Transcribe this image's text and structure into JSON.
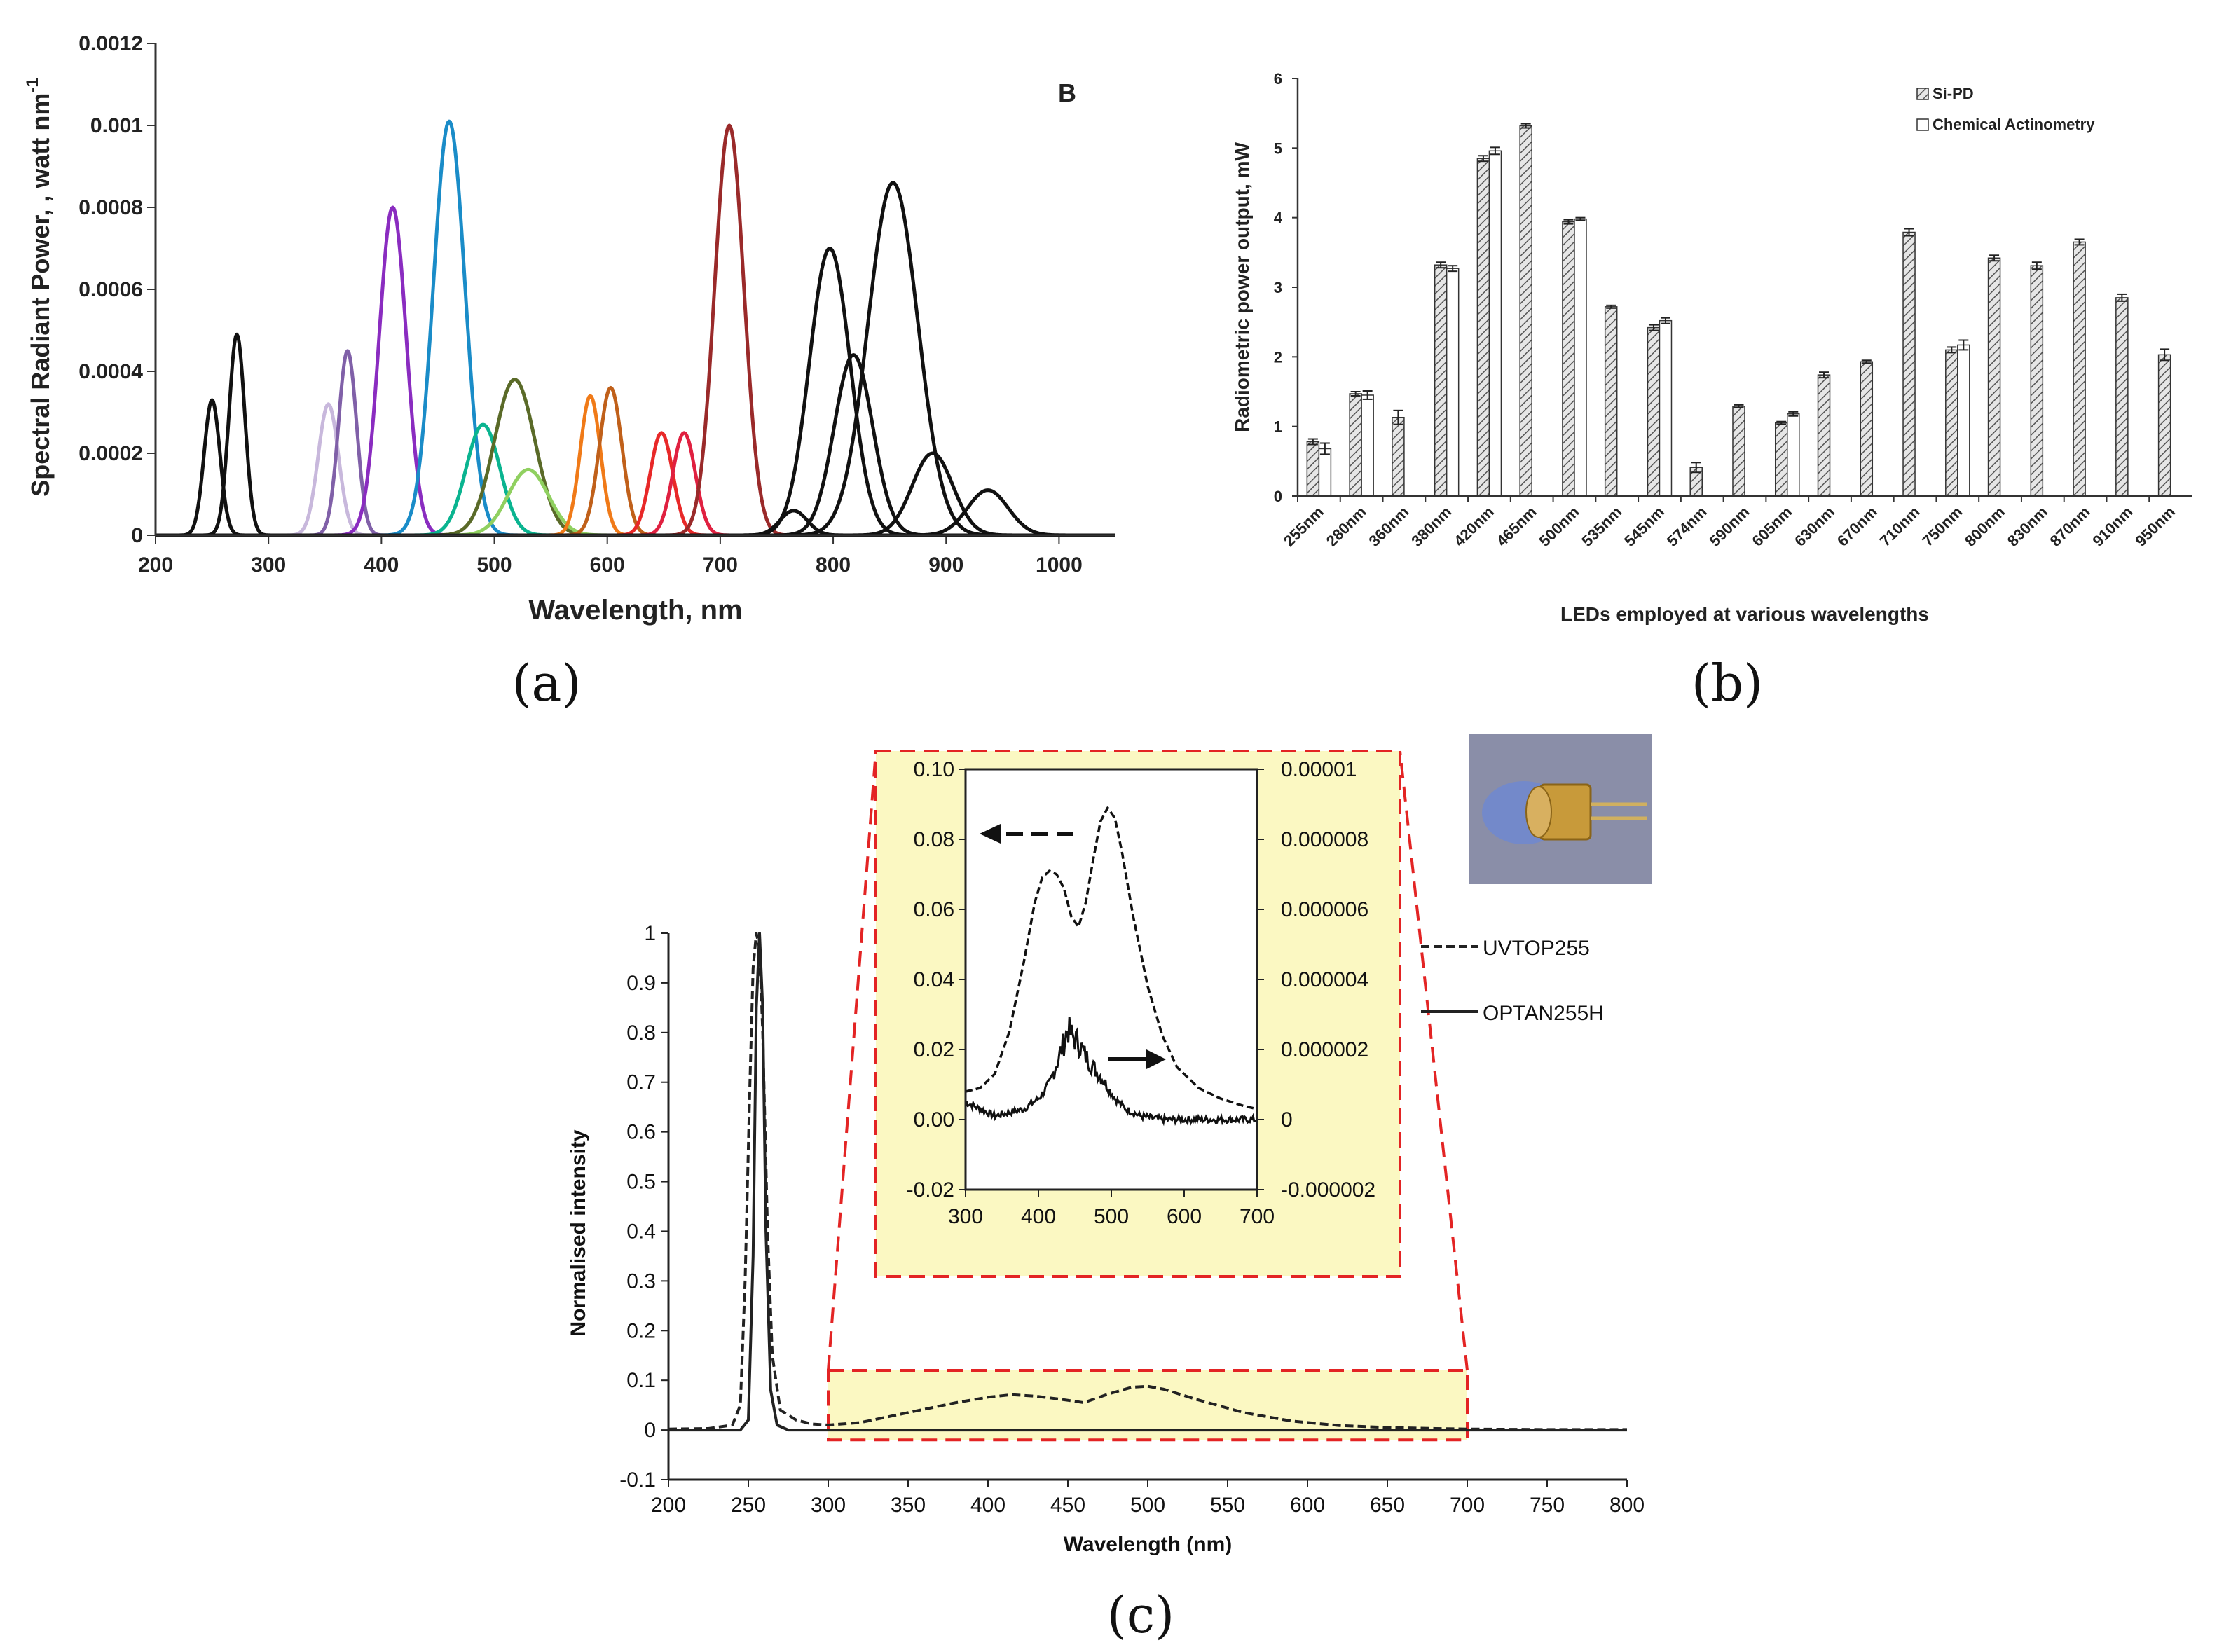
{
  "captions": {
    "a": "(a)",
    "b": "(b)",
    "c": "(c)"
  },
  "chart_data": [
    {
      "id": "a",
      "type": "line",
      "title": "",
      "panel_letter": "B",
      "xlabel": "Wavelength, nm",
      "ylabel": "Spectral Radiant Power, , watt nm",
      "ylabel_superscript": "-1",
      "xlim": [
        200,
        1050
      ],
      "ylim": [
        0,
        0.0012
      ],
      "xticks": [
        "200",
        "300",
        "400",
        "500",
        "600",
        "700",
        "800",
        "900",
        "1000"
      ],
      "yticks": [
        "0",
        "0.0002",
        "0.0004",
        "0.0006",
        "0.0008",
        "0.001",
        "0.0012"
      ],
      "series": [
        {
          "name": "LED 250 nm",
          "peak": 250,
          "amp": 0.00033,
          "width": 7,
          "color": "#111111"
        },
        {
          "name": "LED 272 nm",
          "peak": 272,
          "amp": 0.00049,
          "width": 7,
          "color": "#111111"
        },
        {
          "name": "LED 353 nm",
          "peak": 353,
          "amp": 0.00032,
          "width": 9,
          "color": "#c8b8dc"
        },
        {
          "name": "LED 370 nm",
          "peak": 370,
          "amp": 0.00045,
          "width": 8,
          "color": "#8060a8"
        },
        {
          "name": "LED 410 nm",
          "peak": 410,
          "amp": 0.0008,
          "width": 12,
          "color": "#8a2cc0"
        },
        {
          "name": "LED 460 nm",
          "peak": 460,
          "amp": 0.00101,
          "width": 14,
          "color": "#1a8cc8"
        },
        {
          "name": "LED 490 nm",
          "peak": 490,
          "amp": 0.00027,
          "width": 15,
          "color": "#0ab490"
        },
        {
          "name": "LED 518 nm",
          "peak": 518,
          "amp": 0.00038,
          "width": 18,
          "color": "#5a6a28"
        },
        {
          "name": "LED 530 nm",
          "peak": 530,
          "amp": 0.00016,
          "width": 18,
          "color": "#90d060"
        },
        {
          "name": "LED 585 nm",
          "peak": 585,
          "amp": 0.00034,
          "width": 9,
          "color": "#f07a18"
        },
        {
          "name": "LED 603 nm",
          "peak": 603,
          "amp": 0.00036,
          "width": 10,
          "color": "#c0601a"
        },
        {
          "name": "LED 648 nm",
          "peak": 648,
          "amp": 0.00025,
          "width": 10,
          "color": "#e82828"
        },
        {
          "name": "LED 668 nm",
          "peak": 668,
          "amp": 0.00025,
          "width": 10,
          "color": "#e02040"
        },
        {
          "name": "LED 708 nm",
          "peak": 708,
          "amp": 0.001,
          "width": 13,
          "color": "#9a2a2a"
        },
        {
          "name": "LED 765 nm",
          "peak": 765,
          "amp": 6e-05,
          "width": 12,
          "color": "#111111"
        },
        {
          "name": "LED 797 nm",
          "peak": 797,
          "amp": 0.0007,
          "width": 18,
          "color": "#111111"
        },
        {
          "name": "LED 818 nm",
          "peak": 818,
          "amp": 0.00044,
          "width": 17,
          "color": "#111111"
        },
        {
          "name": "LED 853 nm",
          "peak": 853,
          "amp": 0.00086,
          "width": 22,
          "color": "#111111"
        },
        {
          "name": "LED 888 nm",
          "peak": 888,
          "amp": 0.0002,
          "width": 18,
          "color": "#111111"
        },
        {
          "name": "LED 937 nm",
          "peak": 937,
          "amp": 0.00011,
          "width": 18,
          "color": "#111111"
        }
      ]
    },
    {
      "id": "b",
      "type": "bar",
      "xlabel": "LEDs employed at various wavelengths",
      "ylabel": "Radiometric power output, mW",
      "ylim": [
        0,
        6
      ],
      "yticks": [
        "0",
        "1",
        "2",
        "3",
        "4",
        "5",
        "6"
      ],
      "legend": [
        "Si-PD",
        "Chemical Actinometry"
      ],
      "legend_position": "top-right",
      "categories": [
        "255nm",
        "280nm",
        "360nm",
        "380nm",
        "420nm",
        "465nm",
        "500nm",
        "535nm",
        "545nm",
        "574nm",
        "590nm",
        "605nm",
        "630nm",
        "670nm",
        "710nm",
        "750nm",
        "800nm",
        "830nm",
        "870nm",
        "910nm",
        "950nm"
      ],
      "series": [
        {
          "name": "Si-PD",
          "values": [
            0.78,
            1.47,
            1.13,
            3.32,
            4.85,
            5.32,
            3.94,
            2.72,
            2.42,
            0.41,
            1.29,
            1.05,
            1.74,
            1.93,
            3.79,
            2.1,
            3.42,
            3.31,
            3.65,
            2.85,
            2.03
          ],
          "errors": [
            0.04,
            0.03,
            0.1,
            0.04,
            0.04,
            0.03,
            0.03,
            0.02,
            0.04,
            0.07,
            0.02,
            0.02,
            0.04,
            0.02,
            0.05,
            0.04,
            0.04,
            0.05,
            0.04,
            0.05,
            0.08
          ]
        },
        {
          "name": "Chemical Actinometry",
          "values": [
            0.68,
            1.45,
            null,
            3.27,
            4.96,
            null,
            3.98,
            null,
            2.52,
            null,
            null,
            1.18,
            null,
            null,
            null,
            2.17,
            null,
            null,
            null,
            null,
            null
          ],
          "errors": [
            0.08,
            0.06,
            null,
            0.04,
            0.05,
            null,
            0.02,
            null,
            0.04,
            null,
            null,
            0.03,
            null,
            null,
            null,
            0.07,
            null,
            null,
            null,
            null,
            null
          ]
        }
      ]
    },
    {
      "id": "c",
      "type": "line",
      "xlabel": "Wavelength (nm)",
      "ylabel": "Normalised intensity",
      "xlim": [
        200,
        800
      ],
      "ylim": [
        -0.1,
        1
      ],
      "xticks": [
        "200",
        "250",
        "300",
        "350",
        "400",
        "450",
        "500",
        "550",
        "600",
        "650",
        "700",
        "750",
        "800"
      ],
      "yticks": [
        "-0.1",
        "0",
        "0.1",
        "0.2",
        "0.3",
        "0.4",
        "0.5",
        "0.6",
        "0.7",
        "0.8",
        "0.9",
        "1"
      ],
      "legend": [
        "UVTOP255",
        "OPTAN255H"
      ],
      "series": [
        {
          "name": "UVTOP255",
          "style": "dashed",
          "x": [
            200,
            225,
            240,
            245,
            248,
            251,
            253,
            255,
            257,
            259,
            262,
            265,
            270,
            280,
            290,
            300,
            320,
            350,
            380,
            400,
            415,
            430,
            445,
            460,
            475,
            490,
            500,
            510,
            530,
            560,
            590,
            620,
            650,
            680,
            700,
            750,
            800
          ],
          "y": [
            0.002,
            0.003,
            0.01,
            0.05,
            0.3,
            0.7,
            0.93,
            1.0,
            0.97,
            0.8,
            0.4,
            0.15,
            0.04,
            0.02,
            0.012,
            0.01,
            0.015,
            0.035,
            0.055,
            0.066,
            0.071,
            0.068,
            0.062,
            0.055,
            0.072,
            0.086,
            0.088,
            0.082,
            0.062,
            0.035,
            0.018,
            0.009,
            0.005,
            0.003,
            0.002,
            0.001,
            0.001
          ]
        },
        {
          "name": "OPTAN255H",
          "style": "solid",
          "x": [
            200,
            245,
            250,
            253,
            255,
            257,
            259,
            261,
            264,
            268,
            275,
            300,
            800
          ],
          "y": [
            0.0,
            0.0,
            0.02,
            0.35,
            0.85,
            1.0,
            0.85,
            0.4,
            0.08,
            0.01,
            0.0,
            0.0,
            0.0
          ]
        }
      ],
      "zoom_region": {
        "xlim": [
          300,
          700
        ],
        "ylim": [
          -0.02,
          0.12
        ]
      },
      "inset": {
        "xlim": [
          300,
          700
        ],
        "ylim_left": [
          -0.02,
          0.1
        ],
        "ylim_right": [
          -2e-06,
          1e-05
        ],
        "xticks": [
          "300",
          "400",
          "500",
          "600",
          "700"
        ],
        "yticks_left": [
          "-0.02",
          "0.00",
          "0.02",
          "0.04",
          "0.06",
          "0.08",
          "0.10"
        ],
        "yticks_right": [
          "-0.000002",
          "0",
          "0.000002",
          "0.000004",
          "0.000006",
          "0.000008",
          "0.00001"
        ],
        "series": [
          {
            "name": "UVTOP255",
            "axis": "left",
            "style": "dashed",
            "x": [
              300,
              320,
              340,
              360,
              380,
              395,
              405,
              415,
              425,
              435,
              445,
              455,
              465,
              475,
              485,
              495,
              505,
              515,
              530,
              550,
              570,
              590,
              620,
              650,
              680,
              700
            ],
            "y": [
              0.008,
              0.009,
              0.013,
              0.025,
              0.045,
              0.062,
              0.069,
              0.071,
              0.07,
              0.066,
              0.058,
              0.055,
              0.062,
              0.074,
              0.085,
              0.089,
              0.086,
              0.076,
              0.058,
              0.038,
              0.024,
              0.015,
              0.009,
              0.006,
              0.004,
              0.003
            ]
          },
          {
            "name": "OPTAN255H",
            "axis": "right",
            "style": "solid",
            "x": [
              300,
              320,
              340,
              360,
              380,
              400,
              415,
              425,
              435,
              440,
              445,
              455,
              465,
              475,
              490,
              505,
              520,
              540,
              570,
              600,
              650,
              700
            ],
            "y": [
              5e-07,
              3e-07,
              1e-07,
              2e-07,
              3e-07,
              6e-07,
              1e-06,
              1.6e-06,
              2.2e-06,
              2.6e-06,
              2.4e-06,
              2.2e-06,
              1.8e-06,
              1.5e-06,
              1.1e-06,
              6e-07,
              3e-07,
              1e-07,
              0,
              0,
              0,
              0
            ]
          }
        ]
      }
    }
  ]
}
